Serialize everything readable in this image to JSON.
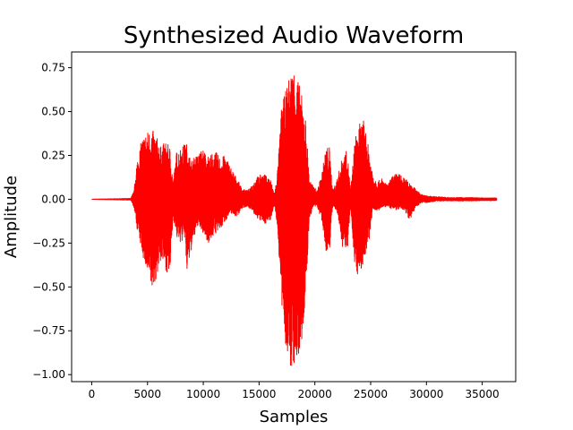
{
  "chart_data": {
    "type": "line",
    "title": "Synthesized Audio Waveform",
    "xlabel": "Samples",
    "ylabel": "Amplitude",
    "xlim": [
      -1800,
      38000
    ],
    "ylim": [
      -1.04,
      0.84
    ],
    "xticks": [
      0,
      5000,
      10000,
      15000,
      20000,
      25000,
      30000,
      35000
    ],
    "yticks": [
      -1.0,
      -0.75,
      -0.5,
      -0.25,
      0.0,
      0.25,
      0.5,
      0.75
    ],
    "ytick_labels": [
      "−1.00",
      "−0.75",
      "−0.50",
      "−0.25",
      "0.00",
      "0.25",
      "0.50",
      "0.75"
    ],
    "grid": false,
    "legend": "none",
    "series": [
      {
        "color": "#ff0000",
        "x_start": 0,
        "x_end": 36300,
        "envelope": [
          [
            0,
            0.0,
            0.0
          ],
          [
            3500,
            0.005,
            -0.005
          ],
          [
            3800,
            0.05,
            -0.05
          ],
          [
            4000,
            0.2,
            -0.15
          ],
          [
            4500,
            0.35,
            -0.3
          ],
          [
            5000,
            0.39,
            -0.45
          ],
          [
            5400,
            0.4,
            -0.53
          ],
          [
            5800,
            0.36,
            -0.45
          ],
          [
            6200,
            0.3,
            -0.35
          ],
          [
            6600,
            0.33,
            -0.4
          ],
          [
            7000,
            0.3,
            -0.45
          ],
          [
            7300,
            0.1,
            -0.1
          ],
          [
            7600,
            0.27,
            -0.22
          ],
          [
            8000,
            0.3,
            -0.25
          ],
          [
            8400,
            0.32,
            -0.22
          ],
          [
            8500,
            0.32,
            -0.45
          ],
          [
            8900,
            0.22,
            -0.3
          ],
          [
            9500,
            0.26,
            -0.15
          ],
          [
            10000,
            0.29,
            -0.2
          ],
          [
            10500,
            0.24,
            -0.25
          ],
          [
            11000,
            0.28,
            -0.2
          ],
          [
            11500,
            0.24,
            -0.18
          ],
          [
            12000,
            0.25,
            -0.12
          ],
          [
            12500,
            0.18,
            -0.08
          ],
          [
            13000,
            0.12,
            -0.1
          ],
          [
            13500,
            0.06,
            -0.05
          ],
          [
            14000,
            0.05,
            -0.04
          ],
          [
            14500,
            0.1,
            -0.08
          ],
          [
            15000,
            0.14,
            -0.12
          ],
          [
            15500,
            0.14,
            -0.14
          ],
          [
            16000,
            0.12,
            -0.12
          ],
          [
            16400,
            0.03,
            -0.03
          ],
          [
            16700,
            0.2,
            -0.2
          ],
          [
            17000,
            0.52,
            -0.62
          ],
          [
            17500,
            0.65,
            -0.9
          ],
          [
            17800,
            0.72,
            -1.0
          ],
          [
            18100,
            0.76,
            -0.95
          ],
          [
            18400,
            0.72,
            -0.97
          ],
          [
            18800,
            0.6,
            -0.85
          ],
          [
            19200,
            0.45,
            -0.55
          ],
          [
            19500,
            0.12,
            -0.12
          ],
          [
            19800,
            0.08,
            -0.05
          ],
          [
            20200,
            0.05,
            -0.04
          ],
          [
            20600,
            0.14,
            -0.12
          ],
          [
            21000,
            0.3,
            -0.3
          ],
          [
            21300,
            0.3,
            -0.3
          ],
          [
            21600,
            0.05,
            -0.04
          ],
          [
            22000,
            0.12,
            -0.08
          ],
          [
            22500,
            0.25,
            -0.28
          ],
          [
            22900,
            0.28,
            -0.3
          ],
          [
            23200,
            0.05,
            -0.04
          ],
          [
            23600,
            0.35,
            -0.4
          ],
          [
            24000,
            0.43,
            -0.45
          ],
          [
            24400,
            0.45,
            -0.35
          ],
          [
            24800,
            0.3,
            -0.28
          ],
          [
            25200,
            0.15,
            -0.05
          ],
          [
            25600,
            0.1,
            -0.07
          ],
          [
            26000,
            0.12,
            -0.05
          ],
          [
            26500,
            0.08,
            -0.04
          ],
          [
            27000,
            0.14,
            -0.06
          ],
          [
            27500,
            0.15,
            -0.06
          ],
          [
            28000,
            0.12,
            -0.06
          ],
          [
            28500,
            0.1,
            -0.12
          ],
          [
            29000,
            0.06,
            -0.05
          ],
          [
            29500,
            0.03,
            -0.02
          ],
          [
            30000,
            0.02,
            -0.02
          ],
          [
            31000,
            0.015,
            -0.01
          ],
          [
            32000,
            0.01,
            -0.01
          ],
          [
            33000,
            0.01,
            -0.01
          ],
          [
            34000,
            0.01,
            -0.01
          ],
          [
            35000,
            0.008,
            -0.008
          ],
          [
            36300,
            0.008,
            -0.008
          ]
        ]
      }
    ]
  }
}
